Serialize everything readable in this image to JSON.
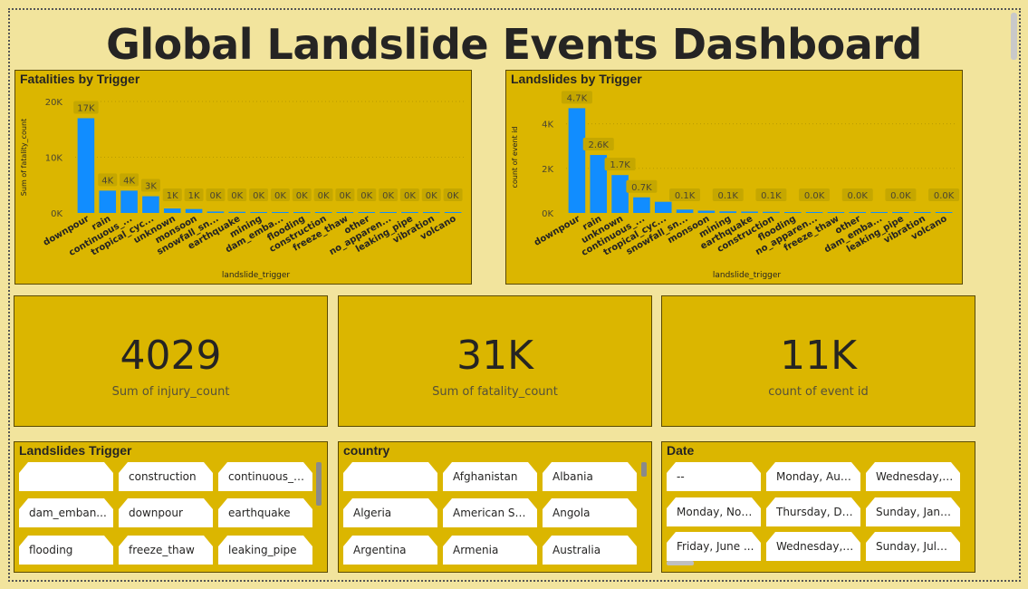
{
  "dashboard": {
    "title": "Global Landslide Events Dashboard"
  },
  "charts": {
    "fatalities": {
      "title": "Fatalities by Trigger",
      "chart_data": {
        "type": "bar",
        "title": "Fatalities by Trigger",
        "xlabel": "landslide_trigger",
        "ylabel": "Sum of fatality_count",
        "ylim": [
          0,
          20000
        ],
        "yticks": [
          "0K",
          "10K",
          "20K"
        ],
        "grid": true,
        "categories": [
          "downpour",
          "rain",
          "continuous_...",
          "tropical_cyc...",
          "unknown",
          "monsoon",
          "snowfall_sn...",
          "earthquake",
          "mining",
          "dam_emba...",
          "flooding",
          "construction",
          "freeze_thaw",
          "other",
          "no_apparen...",
          "leaking_pipe",
          "vibration",
          "volcano"
        ],
        "values": [
          17000,
          4000,
          4000,
          3000,
          800,
          700,
          250,
          200,
          150,
          100,
          80,
          60,
          40,
          30,
          20,
          10,
          5,
          3
        ],
        "data_labels": [
          "17K",
          "4K",
          "4K",
          "3K",
          "1K",
          "1K",
          "0K",
          "0K",
          "0K",
          "0K",
          "0K",
          "0K",
          "0K",
          "0K",
          "0K",
          "0K",
          "0K",
          "0K"
        ],
        "bar_color": "#118dff"
      }
    },
    "landslides": {
      "title": "Landslides by Trigger",
      "chart_data": {
        "type": "bar",
        "title": "Landslides by Trigger",
        "xlabel": "landslide_trigger",
        "ylabel": "count of event id",
        "ylim": [
          0,
          5000
        ],
        "yticks": [
          "0K",
          "2K",
          "4K"
        ],
        "grid": true,
        "categories": [
          "downpour",
          "rain",
          "unknown",
          "continuous_...",
          "tropical_cyc...",
          "snowfall_sn...",
          "monsoon",
          "mining",
          "earthquake",
          "construction",
          "flooding",
          "no_apparen...",
          "freeze_thaw",
          "other",
          "dam_emba...",
          "leaking_pipe",
          "vibration",
          "volcano"
        ],
        "values": [
          4700,
          2600,
          1700,
          700,
          500,
          150,
          100,
          70,
          60,
          50,
          40,
          30,
          25,
          20,
          15,
          10,
          8,
          5
        ],
        "data_labels": [
          "4.7K",
          "2.6K",
          "1.7K",
          "0.7K",
          "",
          "0.1K",
          "",
          "0.1K",
          "",
          "0.1K",
          "",
          "0.0K",
          "",
          "0.0K",
          "",
          "0.0K",
          "",
          "0.0K"
        ],
        "bar_color": "#118dff"
      }
    }
  },
  "cards": [
    {
      "value": "4029",
      "label": "Sum of injury_count"
    },
    {
      "value": "31K",
      "label": "Sum of fatality_count"
    },
    {
      "value": "11K",
      "label": "count of event id"
    }
  ],
  "slicers": {
    "trigger": {
      "title": "Landslides Trigger",
      "items": [
        "",
        "construction",
        "continuous_r...",
        "dam_emban...",
        "downpour",
        "earthquake",
        "flooding",
        "freeze_thaw",
        "leaking_pipe"
      ]
    },
    "country": {
      "title": "country",
      "items": [
        "",
        "Afghanistan",
        "Albania",
        "Algeria",
        "American Sa...",
        "Angola",
        "Argentina",
        "Armenia",
        "Australia"
      ]
    },
    "date": {
      "title": "Date",
      "items": [
        "--",
        "Monday, Aug...",
        "Wednesday, J...",
        "Monday, Nov...",
        "Thursday, De...",
        "Sunday, Janu...",
        "Friday, June ...",
        "Wednesday, J...",
        "Sunday, July ..."
      ]
    }
  },
  "colors": {
    "background": "#f2e49d",
    "panel": "#dbb600",
    "bar": "#118dff",
    "text": "#252423"
  }
}
